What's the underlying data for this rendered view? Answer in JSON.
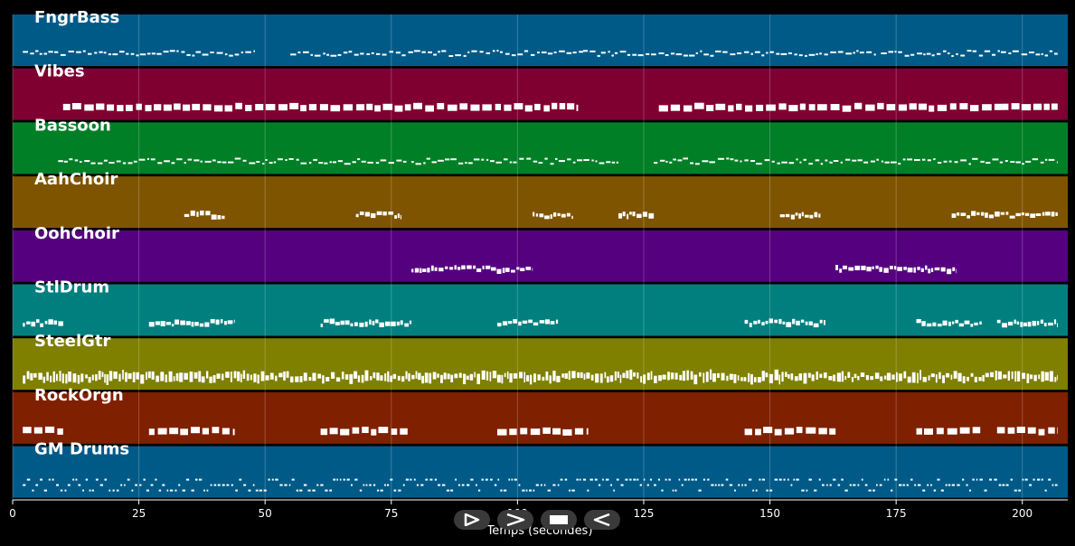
{
  "chart_data": {
    "type": "piano-roll",
    "xlabel": "Temps (secondes)",
    "xlim": [
      0,
      209
    ],
    "xticks": [
      0,
      25,
      50,
      75,
      100,
      125,
      150,
      175,
      200
    ],
    "grid": true,
    "tracks": [
      {
        "name": "FngrBass",
        "color": "#005a87",
        "segments": [
          [
            2,
            48
          ],
          [
            55,
            113
          ],
          [
            113,
            171
          ],
          [
            172,
            207
          ]
        ],
        "style": "thin"
      },
      {
        "name": "Vibes",
        "color": "#7f0030",
        "segments": [
          [
            10,
            112
          ],
          [
            128,
            196
          ],
          [
            196,
            207
          ]
        ],
        "style": "blocks"
      },
      {
        "name": "Bassoon",
        "color": "#007f27",
        "segments": [
          [
            9,
            44
          ],
          [
            44,
            78
          ],
          [
            79,
            120
          ],
          [
            127,
            162
          ],
          [
            162,
            207
          ]
        ],
        "style": "thin"
      },
      {
        "name": "AahChoir",
        "color": "#7f5400",
        "segments": [
          [
            34,
            42
          ],
          [
            68,
            77
          ],
          [
            103,
            111
          ],
          [
            120,
            127
          ],
          [
            152,
            160
          ],
          [
            186,
            207
          ]
        ],
        "style": "medium"
      },
      {
        "name": "OohChoir",
        "color": "#55007f",
        "segments": [
          [
            79,
            103
          ],
          [
            163,
            187
          ]
        ],
        "style": "medium"
      },
      {
        "name": "StlDrum",
        "color": "#007f7f",
        "segments": [
          [
            2,
            10
          ],
          [
            27,
            44
          ],
          [
            61,
            79
          ],
          [
            96,
            108
          ],
          [
            145,
            161
          ],
          [
            179,
            192
          ],
          [
            195,
            207
          ]
        ],
        "style": "medium"
      },
      {
        "name": "SteelGtr",
        "color": "#7f7f00",
        "segments": [
          [
            2,
            207
          ]
        ],
        "style": "dense"
      },
      {
        "name": "RockOrgn",
        "color": "#7f2000",
        "segments": [
          [
            2,
            10
          ],
          [
            27,
            44
          ],
          [
            61,
            79
          ],
          [
            96,
            114
          ],
          [
            145,
            163
          ],
          [
            179,
            192
          ],
          [
            195,
            207
          ]
        ],
        "style": "blocks"
      },
      {
        "name": "GM Drums",
        "color": "#005a87",
        "segments": [
          [
            2,
            207
          ]
        ],
        "style": "drums"
      }
    ]
  },
  "controls": [
    {
      "name": "play",
      "icon": "play-icon"
    },
    {
      "name": "forward",
      "icon": "forward-icon"
    },
    {
      "name": "stop",
      "icon": "stop-icon"
    },
    {
      "name": "back",
      "icon": "back-icon"
    }
  ]
}
